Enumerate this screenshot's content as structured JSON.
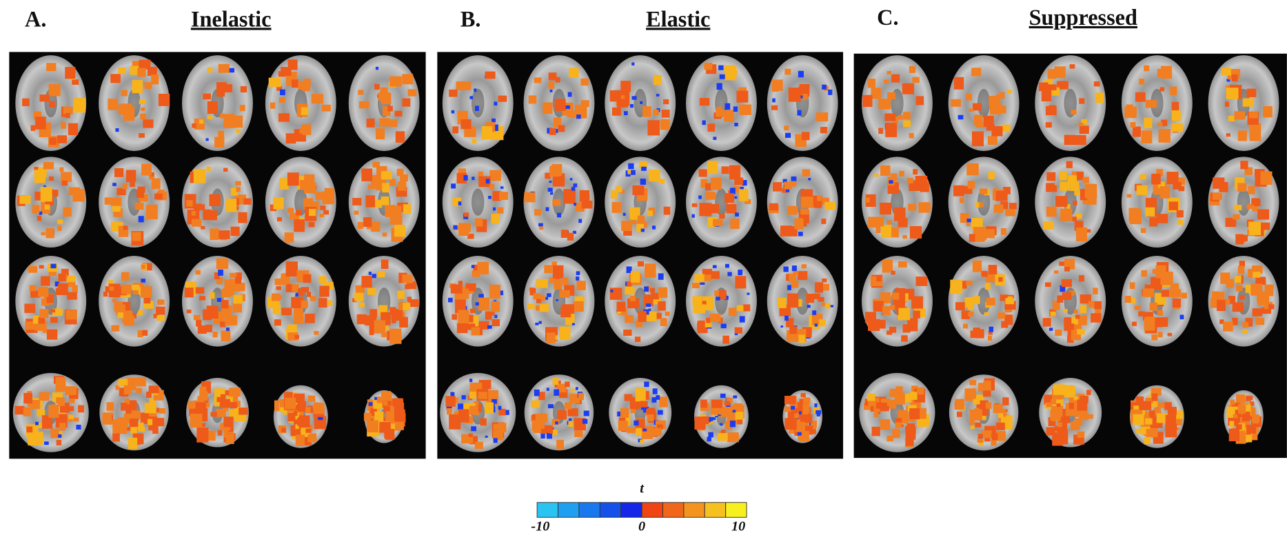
{
  "panels": [
    {
      "letter": "A.",
      "title": "Inelastic"
    },
    {
      "letter": "B.",
      "title": "Elastic"
    },
    {
      "letter": "C.",
      "title": "Suppressed"
    }
  ],
  "colorbar": {
    "label": "t",
    "ticks": [
      "-10",
      "0",
      "10"
    ]
  }
}
